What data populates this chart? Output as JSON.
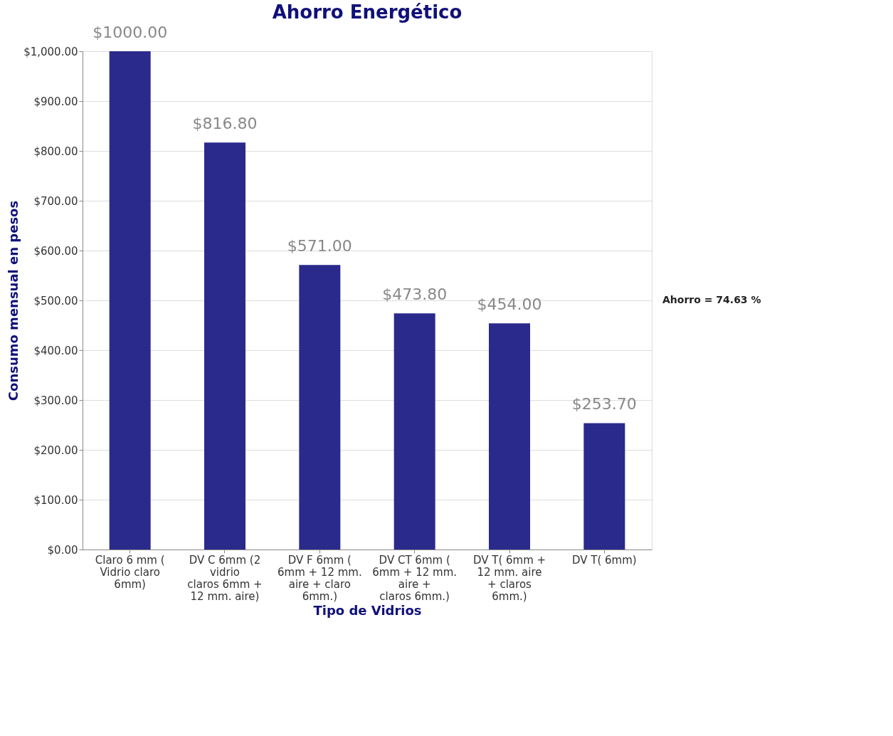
{
  "chart_data": {
    "type": "bar",
    "title": "Ahorro Energético",
    "xlabel": "Tipo de Vidrios",
    "ylabel": "Consumo mensual en pesos",
    "categories": [
      "Claro 6 mm ( Vidrio claro 6mm)",
      "DV C 6mm (2 vidrio claros 6mm + 12 mm. aire)",
      "DV F 6mm ( 6mm + 12 mm. aire + claro 6mm.)",
      "DV CT 6mm ( 6mm + 12 mm. aire + claros 6mm.)",
      "DV T( 6mm + 12 mm. aire + claros 6mm.)",
      "DV T( 6mm)"
    ],
    "values": [
      1000.0,
      816.8,
      571.0,
      473.8,
      454.0,
      253.7
    ],
    "value_labels": [
      "$1000.00",
      "$816.80",
      "$571.00",
      "$473.80",
      "$454.00",
      "$253.70"
    ],
    "color": "#2a2a8c",
    "ylim": [
      0,
      1000
    ],
    "yticks": [
      {
        "value": 0,
        "label": "$0.00"
      },
      {
        "value": 100,
        "label": "$100.00"
      },
      {
        "value": 200,
        "label": "$200.00"
      },
      {
        "value": 300,
        "label": "$300.00"
      },
      {
        "value": 400,
        "label": "$400.00"
      },
      {
        "value": 500,
        "label": "$500.00"
      },
      {
        "value": 600,
        "label": "$600.00"
      },
      {
        "value": 700,
        "label": "$700.00"
      },
      {
        "value": 800,
        "label": "$800.00"
      },
      {
        "value": 900,
        "label": "$900.00"
      },
      {
        "value": 1000,
        "label": "$1,000.00"
      }
    ],
    "grid": "y",
    "annotations": [
      "Ahorro = 74.63 %"
    ]
  }
}
